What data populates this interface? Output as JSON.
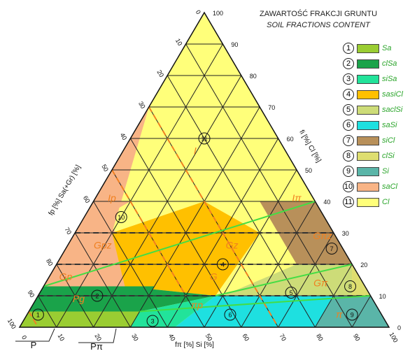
{
  "header": {
    "title": "ZAWARTOŚĆ FRAKCJI GRUNTU",
    "subtitle": "SOIL FRACTIONS CONTENT"
  },
  "axes": {
    "left_label": "fp [%]  Sa(+Gr) [%]",
    "right_label": "fi [%]  Cl [%]",
    "bottom_label": "fπ [%]  Si [%]",
    "ticks": [
      "0",
      "10",
      "20",
      "30",
      "40",
      "50",
      "60",
      "70",
      "80",
      "90",
      "100"
    ]
  },
  "bottom_labels": {
    "p": "P",
    "ppi": "Pπ"
  },
  "legend": [
    {
      "num": "1",
      "code": "Sa",
      "color": "#9acd32"
    },
    {
      "num": "2",
      "code": "clSa",
      "color": "#1aa34a"
    },
    {
      "num": "3",
      "code": "siSa",
      "color": "#22e39a"
    },
    {
      "num": "4",
      "code": "sasiCl",
      "color": "#ffc000"
    },
    {
      "num": "5",
      "code": "saclSi",
      "color": "#cddc78"
    },
    {
      "num": "6",
      "code": "saSi",
      "color": "#1ee0e0"
    },
    {
      "num": "7",
      "code": "siCl",
      "color": "#b8905a"
    },
    {
      "num": "8",
      "code": "clSi",
      "color": "#dede70"
    },
    {
      "num": "9",
      "code": "Si",
      "color": "#5ab5a8"
    },
    {
      "num": "10",
      "code": "saCl",
      "color": "#f8b486"
    },
    {
      "num": "11",
      "code": "Cl",
      "color": "#ffff7a"
    }
  ],
  "region_labels": [
    {
      "text": "I",
      "italic": true
    },
    {
      "text": "Ip",
      "italic": true
    },
    {
      "text": "Iπ",
      "italic": true
    },
    {
      "text": "Gpz",
      "italic": true
    },
    {
      "text": "Gz",
      "italic": true
    },
    {
      "text": "Gπz",
      "italic": true
    },
    {
      "text": "Gp",
      "italic": true
    },
    {
      "text": "G",
      "italic": true
    },
    {
      "text": "Gπ",
      "italic": true
    },
    {
      "text": "Pg",
      "italic": true
    },
    {
      "text": "πp",
      "italic": true
    },
    {
      "text": "π",
      "italic": true
    }
  ],
  "region_numbers": [
    "1",
    "2",
    "3",
    "4",
    "5",
    "6",
    "7",
    "8",
    "9",
    "10",
    "11"
  ]
}
